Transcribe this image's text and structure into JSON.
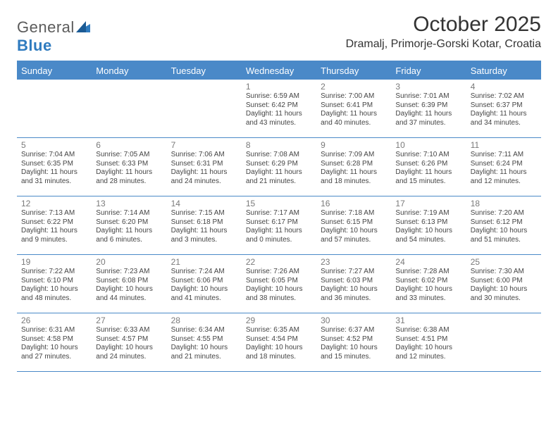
{
  "brand": {
    "name_gray": "General",
    "name_blue": "Blue"
  },
  "title": "October 2025",
  "location": "Dramalj, Primorje-Gorski Kotar, Croatia",
  "colors": {
    "header_bg": "#4a89c8",
    "header_text": "#ffffff",
    "border": "#4a89c8",
    "text": "#454545",
    "num": "#7a7a7a",
    "logo_gray": "#5b5b5b",
    "logo_blue": "#2f7bbf",
    "background": "#ffffff"
  },
  "day_names": [
    "Sunday",
    "Monday",
    "Tuesday",
    "Wednesday",
    "Thursday",
    "Friday",
    "Saturday"
  ],
  "weeks": [
    [
      null,
      null,
      null,
      {
        "n": "1",
        "sr": "6:59 AM",
        "ss": "6:42 PM",
        "dl": "11 hours and 43 minutes."
      },
      {
        "n": "2",
        "sr": "7:00 AM",
        "ss": "6:41 PM",
        "dl": "11 hours and 40 minutes."
      },
      {
        "n": "3",
        "sr": "7:01 AM",
        "ss": "6:39 PM",
        "dl": "11 hours and 37 minutes."
      },
      {
        "n": "4",
        "sr": "7:02 AM",
        "ss": "6:37 PM",
        "dl": "11 hours and 34 minutes."
      }
    ],
    [
      {
        "n": "5",
        "sr": "7:04 AM",
        "ss": "6:35 PM",
        "dl": "11 hours and 31 minutes."
      },
      {
        "n": "6",
        "sr": "7:05 AM",
        "ss": "6:33 PM",
        "dl": "11 hours and 28 minutes."
      },
      {
        "n": "7",
        "sr": "7:06 AM",
        "ss": "6:31 PM",
        "dl": "11 hours and 24 minutes."
      },
      {
        "n": "8",
        "sr": "7:08 AM",
        "ss": "6:29 PM",
        "dl": "11 hours and 21 minutes."
      },
      {
        "n": "9",
        "sr": "7:09 AM",
        "ss": "6:28 PM",
        "dl": "11 hours and 18 minutes."
      },
      {
        "n": "10",
        "sr": "7:10 AM",
        "ss": "6:26 PM",
        "dl": "11 hours and 15 minutes."
      },
      {
        "n": "11",
        "sr": "7:11 AM",
        "ss": "6:24 PM",
        "dl": "11 hours and 12 minutes."
      }
    ],
    [
      {
        "n": "12",
        "sr": "7:13 AM",
        "ss": "6:22 PM",
        "dl": "11 hours and 9 minutes."
      },
      {
        "n": "13",
        "sr": "7:14 AM",
        "ss": "6:20 PM",
        "dl": "11 hours and 6 minutes."
      },
      {
        "n": "14",
        "sr": "7:15 AM",
        "ss": "6:18 PM",
        "dl": "11 hours and 3 minutes."
      },
      {
        "n": "15",
        "sr": "7:17 AM",
        "ss": "6:17 PM",
        "dl": "11 hours and 0 minutes."
      },
      {
        "n": "16",
        "sr": "7:18 AM",
        "ss": "6:15 PM",
        "dl": "10 hours and 57 minutes."
      },
      {
        "n": "17",
        "sr": "7:19 AM",
        "ss": "6:13 PM",
        "dl": "10 hours and 54 minutes."
      },
      {
        "n": "18",
        "sr": "7:20 AM",
        "ss": "6:12 PM",
        "dl": "10 hours and 51 minutes."
      }
    ],
    [
      {
        "n": "19",
        "sr": "7:22 AM",
        "ss": "6:10 PM",
        "dl": "10 hours and 48 minutes."
      },
      {
        "n": "20",
        "sr": "7:23 AM",
        "ss": "6:08 PM",
        "dl": "10 hours and 44 minutes."
      },
      {
        "n": "21",
        "sr": "7:24 AM",
        "ss": "6:06 PM",
        "dl": "10 hours and 41 minutes."
      },
      {
        "n": "22",
        "sr": "7:26 AM",
        "ss": "6:05 PM",
        "dl": "10 hours and 38 minutes."
      },
      {
        "n": "23",
        "sr": "7:27 AM",
        "ss": "6:03 PM",
        "dl": "10 hours and 36 minutes."
      },
      {
        "n": "24",
        "sr": "7:28 AM",
        "ss": "6:02 PM",
        "dl": "10 hours and 33 minutes."
      },
      {
        "n": "25",
        "sr": "7:30 AM",
        "ss": "6:00 PM",
        "dl": "10 hours and 30 minutes."
      }
    ],
    [
      {
        "n": "26",
        "sr": "6:31 AM",
        "ss": "4:58 PM",
        "dl": "10 hours and 27 minutes."
      },
      {
        "n": "27",
        "sr": "6:33 AM",
        "ss": "4:57 PM",
        "dl": "10 hours and 24 minutes."
      },
      {
        "n": "28",
        "sr": "6:34 AM",
        "ss": "4:55 PM",
        "dl": "10 hours and 21 minutes."
      },
      {
        "n": "29",
        "sr": "6:35 AM",
        "ss": "4:54 PM",
        "dl": "10 hours and 18 minutes."
      },
      {
        "n": "30",
        "sr": "6:37 AM",
        "ss": "4:52 PM",
        "dl": "10 hours and 15 minutes."
      },
      {
        "n": "31",
        "sr": "6:38 AM",
        "ss": "4:51 PM",
        "dl": "10 hours and 12 minutes."
      },
      null
    ]
  ],
  "labels": {
    "sunrise": "Sunrise: ",
    "sunset": "Sunset: ",
    "daylight": "Daylight: "
  }
}
